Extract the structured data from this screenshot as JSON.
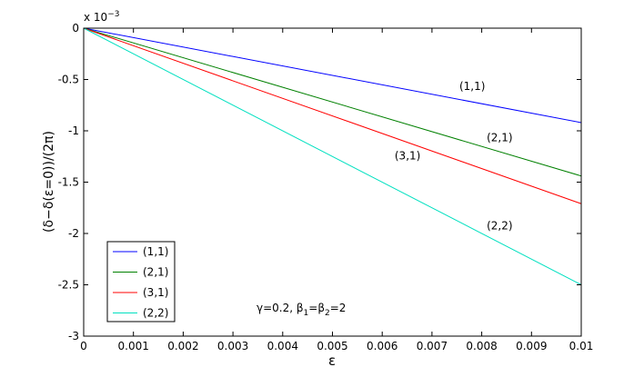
{
  "chart_data": {
    "type": "line",
    "title": "",
    "xlabel": "ε",
    "ylabel": "(δ−δ(ε=0))/(2π)",
    "y_multiplier": "x 10",
    "y_multiplier_exp": "−3",
    "xlim": [
      0,
      0.01
    ],
    "ylim": [
      -3,
      0
    ],
    "x_ticks": [
      0,
      0.001,
      0.002,
      0.003,
      0.004,
      0.005,
      0.006,
      0.007,
      0.008,
      0.009,
      0.01
    ],
    "x_tick_labels": [
      "0",
      "0.001",
      "0.002",
      "0.003",
      "0.004",
      "0.005",
      "0.006",
      "0.007",
      "0.008",
      "0.009",
      "0.01"
    ],
    "y_ticks": [
      0,
      -0.5,
      -1,
      -1.5,
      -2,
      -2.5,
      -3
    ],
    "y_tick_labels": [
      "0",
      "-0.5",
      "-1",
      "-1.5",
      "-2",
      "-2.5",
      "-3"
    ],
    "grid": false,
    "legend_position": "bottom-left",
    "series": [
      {
        "name": "(1,1)",
        "color": "#0000ff",
        "x": [
          0,
          0.01
        ],
        "y": [
          0,
          -0.92
        ]
      },
      {
        "name": "(2,1)",
        "color": "#008000",
        "x": [
          0,
          0.01
        ],
        "y": [
          0,
          -1.44
        ]
      },
      {
        "name": "(3,1)",
        "color": "#ff0000",
        "x": [
          0,
          0.01
        ],
        "y": [
          0,
          -1.71
        ]
      },
      {
        "name": "(2,2)",
        "color": "#00e0c0",
        "x": [
          0,
          0.01
        ],
        "y": [
          0,
          -2.5
        ]
      }
    ],
    "annotations": [
      {
        "text": "(1,1)",
        "x": 0.00755,
        "y": -0.6
      },
      {
        "text": "(2,1)",
        "x": 0.0081,
        "y": -1.1
      },
      {
        "text": "(3,1)",
        "x": 0.00625,
        "y": -1.28
      },
      {
        "text": "(2,2)",
        "x": 0.0081,
        "y": -1.96
      }
    ],
    "param_label": {
      "gamma_part": "γ=0.2, β",
      "sub1": "1",
      "mid": "=β",
      "sub2": "2",
      "tail": "=2"
    }
  }
}
